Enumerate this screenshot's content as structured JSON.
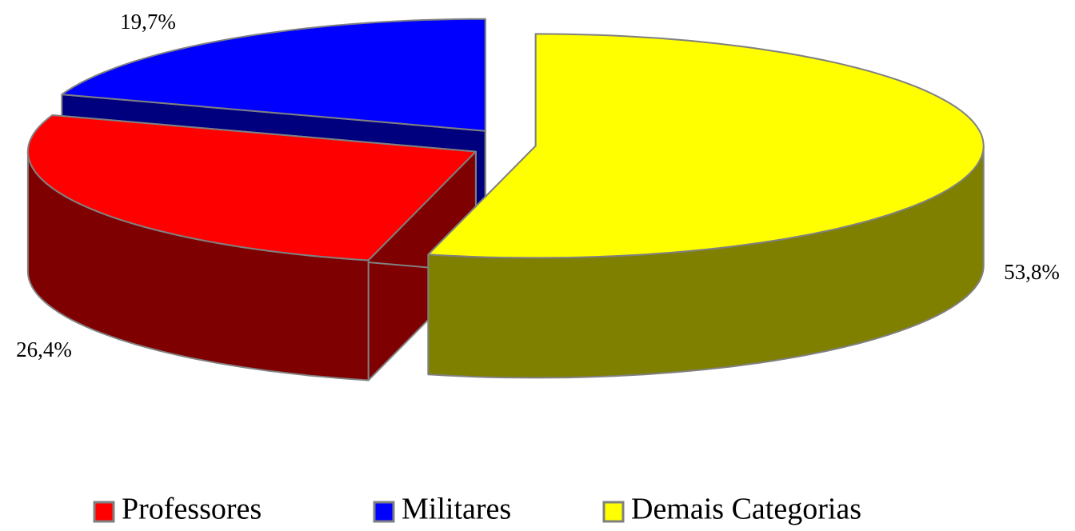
{
  "chart_data": {
    "type": "pie3d",
    "categories": [
      "Professores",
      "Militares",
      "Demais Categorias"
    ],
    "values": [
      26.4,
      19.7,
      53.8
    ],
    "value_labels": [
      "26,4%",
      "19,7%",
      "53,8%"
    ],
    "colors": [
      "#ff0000",
      "#0000ff",
      "#ffff00"
    ],
    "legend": "bottom"
  }
}
